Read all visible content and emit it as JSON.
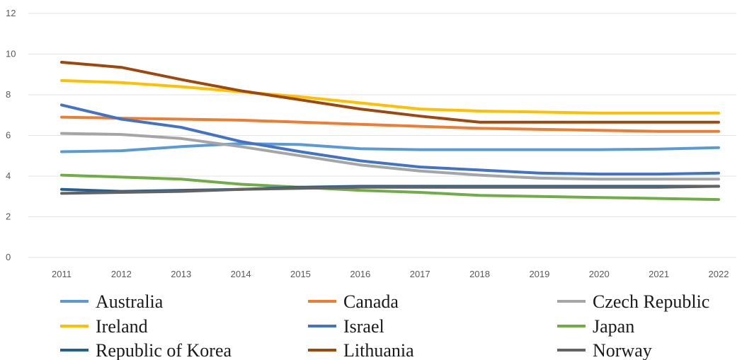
{
  "chart_data": {
    "type": "line",
    "x": [
      "2011",
      "2012",
      "2013",
      "2014",
      "2015",
      "2016",
      "2017",
      "2018",
      "2019",
      "2020",
      "2021",
      "2022"
    ],
    "ylim": [
      0,
      12
    ],
    "yticks": [
      "0",
      "2",
      "4",
      "6",
      "8",
      "10",
      "12"
    ],
    "grid": true,
    "legend_position": "bottom",
    "series": [
      {
        "name": "Australia",
        "color": "#5b9bd5",
        "values": [
          5.2,
          5.25,
          5.45,
          5.6,
          5.55,
          5.35,
          5.3,
          5.3,
          5.3,
          5.3,
          5.33,
          5.4
        ]
      },
      {
        "name": "Canada",
        "color": "#ed7d31",
        "values": [
          6.9,
          6.85,
          6.8,
          6.75,
          6.65,
          6.55,
          6.45,
          6.35,
          6.3,
          6.25,
          6.2,
          6.2
        ]
      },
      {
        "name": "Czech Republic",
        "color": "#a5a5a5",
        "values": [
          6.1,
          6.05,
          5.85,
          5.45,
          5.0,
          4.55,
          4.25,
          4.05,
          3.9,
          3.85,
          3.85,
          3.85
        ]
      },
      {
        "name": "Ireland",
        "color": "#ffc000",
        "values": [
          8.7,
          8.6,
          8.4,
          8.15,
          7.9,
          7.6,
          7.3,
          7.2,
          7.15,
          7.1,
          7.1,
          7.1
        ]
      },
      {
        "name": "Israel",
        "color": "#4472c4",
        "values": [
          7.5,
          6.8,
          6.4,
          5.7,
          5.2,
          4.75,
          4.45,
          4.3,
          4.15,
          4.1,
          4.1,
          4.15
        ]
      },
      {
        "name": "Japan",
        "color": "#70ad47",
        "values": [
          4.05,
          3.95,
          3.85,
          3.6,
          3.45,
          3.3,
          3.2,
          3.05,
          3.0,
          2.95,
          2.9,
          2.85
        ]
      },
      {
        "name": "Republic of Korea",
        "color": "#255e91",
        "values": [
          3.35,
          3.25,
          3.3,
          3.35,
          3.45,
          3.5,
          3.5,
          3.5,
          3.5,
          3.5,
          3.5,
          3.5
        ]
      },
      {
        "name": "Lithuania",
        "color": "#9e480e",
        "values": [
          9.6,
          9.35,
          8.75,
          8.2,
          7.75,
          7.3,
          6.95,
          6.65,
          6.65,
          6.65,
          6.65,
          6.65
        ]
      },
      {
        "name": "Norway",
        "color": "#636363",
        "values": [
          3.15,
          3.2,
          3.25,
          3.35,
          3.4,
          3.45,
          3.45,
          3.45,
          3.45,
          3.45,
          3.45,
          3.5
        ]
      }
    ]
  }
}
